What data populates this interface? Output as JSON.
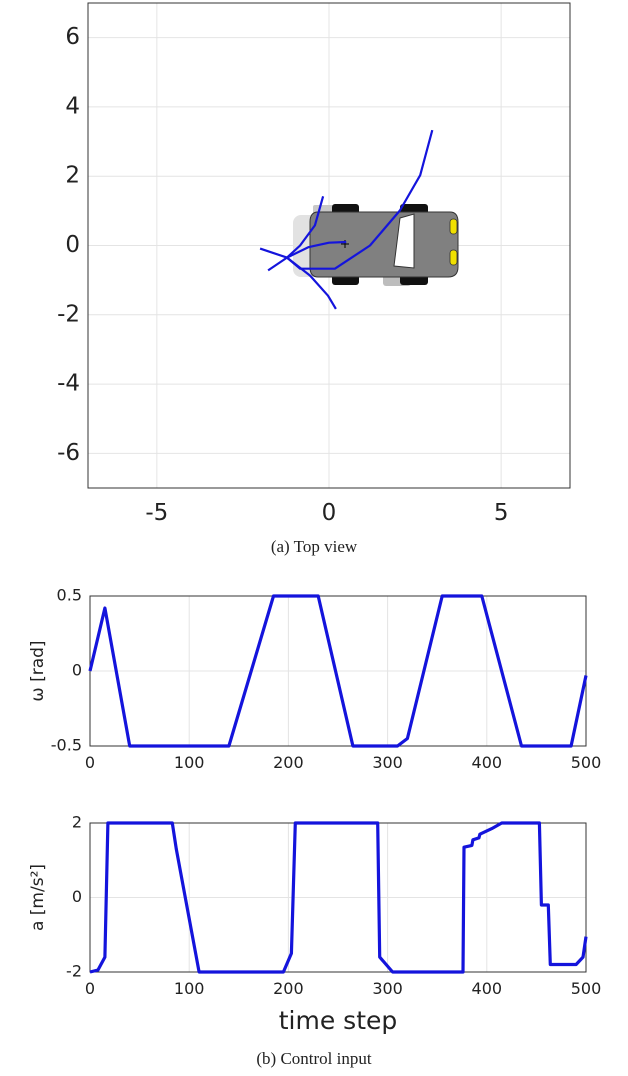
{
  "captions": [
    "(a) Top view",
    "(b) Control input"
  ],
  "chart_data": [
    {
      "type": "line",
      "xlim": [
        -7,
        7
      ],
      "ylim": [
        -7,
        7
      ],
      "xticks": [
        -5,
        0,
        5
      ],
      "yticks": [
        -6,
        -4,
        -2,
        0,
        2,
        4,
        6
      ],
      "grid": true,
      "series": [
        {
          "color": "#1414dc",
          "x": [
            3.0,
            2.65,
            2.06,
            1.19,
            0.17,
            -0.84,
            -1.22
          ],
          "values": [
            3.33,
            2.03,
            1.01,
            0,
            -0.67,
            -0.67,
            -0.35
          ]
        },
        {
          "color": "#1414dc",
          "x": [
            -1.22,
            -0.84,
            -0.41,
            -0.17
          ],
          "values": [
            -0.35,
            0,
            0.58,
            1.42
          ]
        },
        {
          "color": "#1414dc",
          "x": [
            -1.22,
            -0.55,
            -0.03,
            0.2
          ],
          "values": [
            -0.35,
            -0.87,
            -1.45,
            -1.83
          ]
        },
        {
          "color": "#1414dc",
          "x": [
            -2.0,
            -1.22,
            -0.6,
            0,
            0.5
          ],
          "values": [
            -0.09,
            -0.35,
            -0.05,
            0.08,
            0.1
          ]
        },
        {
          "color": "#1414dc",
          "x": [
            -1.77,
            -1.22
          ],
          "values": [
            -0.72,
            -0.35
          ]
        }
      ]
    },
    {
      "type": "line",
      "ylabel": "ω  [rad]",
      "xlim": [
        0,
        500
      ],
      "ylim": [
        -0.5,
        0.5
      ],
      "xticks": [
        0,
        100,
        200,
        300,
        400,
        500
      ],
      "yticks": [
        -0.5,
        0,
        0.5
      ],
      "grid": true,
      "series": [
        {
          "color": "#1414dc",
          "x": [
            0,
            15,
            40,
            140,
            185,
            230,
            265,
            310,
            320,
            355,
            395,
            435,
            485,
            500
          ],
          "values": [
            0,
            0.42,
            -0.5,
            -0.5,
            0.5,
            0.5,
            -0.5,
            -0.5,
            -0.45,
            0.5,
            0.5,
            -0.5,
            -0.5,
            -0.03
          ]
        }
      ]
    },
    {
      "type": "line",
      "ylabel": "a  [m/s²]",
      "xlabel": "time step",
      "xlim": [
        0,
        500
      ],
      "ylim": [
        -2,
        2
      ],
      "xticks": [
        0,
        100,
        200,
        300,
        400,
        500
      ],
      "yticks": [
        -2,
        0,
        2
      ],
      "grid": true,
      "series": [
        {
          "color": "#1414dc",
          "x": [
            0,
            8,
            15,
            18,
            83,
            87,
            110,
            195,
            203,
            207,
            290,
            292,
            305,
            376,
            377,
            385,
            386,
            392,
            393,
            405,
            415,
            453,
            455,
            462,
            464,
            490,
            497,
            500
          ],
          "values": [
            -2,
            -1.95,
            -1.6,
            2,
            2,
            1.3,
            -2,
            -2,
            -1.5,
            2,
            2,
            -1.6,
            -2,
            -2,
            1.35,
            1.4,
            1.55,
            1.6,
            1.7,
            1.85,
            2,
            2,
            -0.2,
            -0.2,
            -1.8,
            -1.8,
            -1.6,
            -1.05
          ]
        }
      ]
    }
  ]
}
